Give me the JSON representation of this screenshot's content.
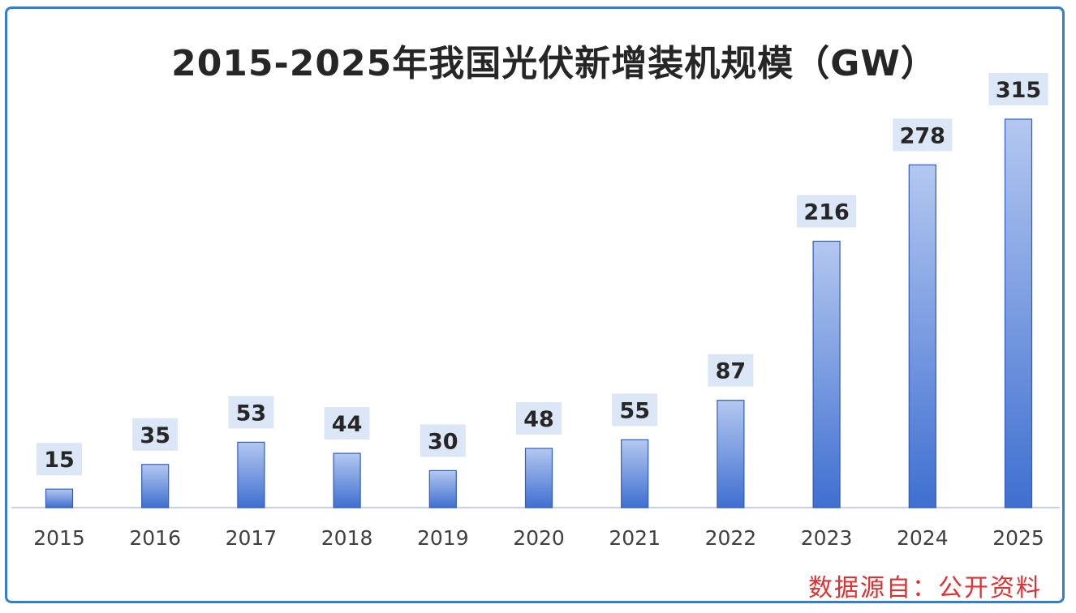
{
  "title": "2015-2025年我国光伏新增装机规模（GW）",
  "source_note": "数据源自：公开资料",
  "chart_data": {
    "type": "bar",
    "title": "2015-2025年我国光伏新增装机规模（GW）",
    "categories": [
      "2015",
      "2016",
      "2017",
      "2018",
      "2019",
      "2020",
      "2021",
      "2022",
      "2023",
      "2024",
      "2025"
    ],
    "values": [
      15,
      35,
      53,
      44,
      30,
      48,
      55,
      87,
      216,
      278,
      315
    ],
    "xlabel": "",
    "ylabel": "",
    "ylim": [
      0,
      315
    ],
    "grid": false,
    "legend": "none",
    "colors": {
      "bar_top": "#b4c8f0",
      "bar_bottom": "#3f6fd0",
      "bar_edge": "#2e5cc0",
      "label_bg": "#dbe6f6",
      "axis": "#c8d2e0"
    }
  }
}
